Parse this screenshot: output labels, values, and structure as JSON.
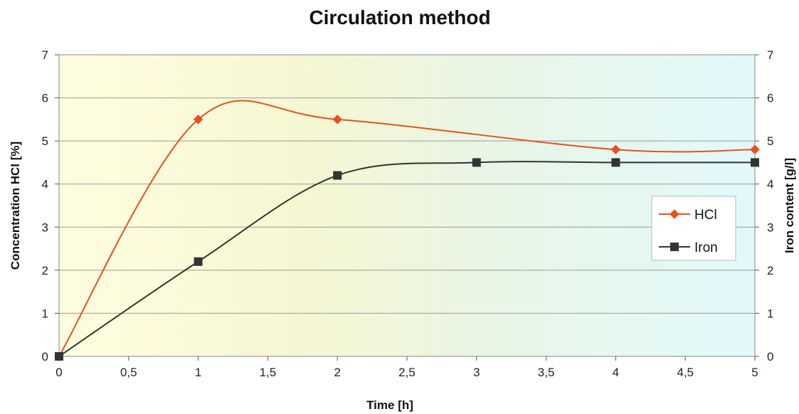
{
  "chart_data": {
    "type": "line",
    "title": "Circulation method",
    "xlabel": "Time [h]",
    "ylabel": "Concentration HCl [%]",
    "y2label": "Iron content [g/l]",
    "xlim": [
      0,
      5
    ],
    "ylim": [
      0,
      7
    ],
    "y2lim": [
      0,
      7
    ],
    "x_ticks": [
      "0",
      "0,5",
      "1",
      "1,5",
      "2",
      "2,5",
      "3",
      "3,5",
      "4",
      "4,5",
      "5"
    ],
    "y_ticks": [
      "0",
      "1",
      "2",
      "3",
      "4",
      "5",
      "6",
      "7"
    ],
    "y2_ticks": [
      "0",
      "1",
      "2",
      "3",
      "4",
      "5",
      "6",
      "7"
    ],
    "grid": true,
    "legend_position": "right",
    "series": [
      {
        "name": "HCl",
        "color": "#e8501e",
        "marker": "diamond",
        "smooth": true,
        "axis": "left",
        "points": [
          [
            0,
            0
          ],
          [
            1,
            5.5
          ],
          [
            2,
            5.5
          ],
          [
            4,
            4.8
          ],
          [
            5,
            4.8
          ]
        ]
      },
      {
        "name": "Iron",
        "color": "#333333",
        "marker": "square",
        "smooth": true,
        "axis": "right",
        "points": [
          [
            0,
            0
          ],
          [
            1,
            2.2
          ],
          [
            2,
            4.2
          ],
          [
            3,
            4.5
          ],
          [
            4,
            4.5
          ],
          [
            5,
            4.5
          ]
        ]
      }
    ]
  }
}
